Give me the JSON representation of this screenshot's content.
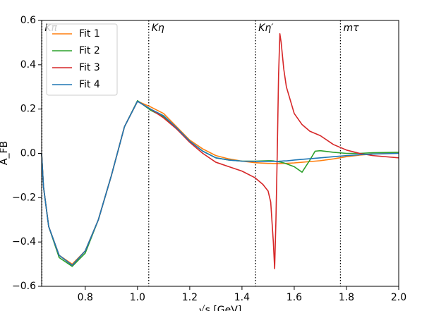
{
  "chart_data": {
    "type": "line",
    "xlabel": "√s [GeV]",
    "ylabel": "A_FB",
    "x": [
      0.633,
      0.64,
      0.66,
      0.7,
      0.75,
      0.8,
      0.85,
      0.9,
      0.95,
      1.0,
      1.05,
      1.1,
      1.15,
      1.2,
      1.25,
      1.3,
      1.35,
      1.4,
      1.45,
      1.48,
      1.5,
      1.51,
      1.52,
      1.525,
      1.53,
      1.535,
      1.54,
      1.545,
      1.55,
      1.56,
      1.57,
      1.6,
      1.63,
      1.66,
      1.68,
      1.7,
      1.75,
      1.8,
      1.85,
      1.9,
      2.0
    ],
    "series": [
      {
        "name": "Fit 1",
        "color": "#ff7f0e",
        "values": [
          0,
          -0.15,
          -0.33,
          -0.46,
          -0.5,
          -0.44,
          -0.3,
          -0.1,
          0.12,
          0.235,
          0.21,
          0.18,
          0.12,
          0.06,
          0.02,
          -0.01,
          -0.025,
          -0.035,
          -0.042,
          -0.044,
          -0.045,
          -0.045,
          -0.046,
          -0.046,
          -0.046,
          -0.046,
          -0.046,
          -0.046,
          -0.046,
          -0.045,
          -0.045,
          -0.043,
          -0.04,
          -0.037,
          -0.035,
          -0.033,
          -0.025,
          -0.015,
          -0.008,
          -0.003,
          0.002
        ]
      },
      {
        "name": "Fit 2",
        "color": "#2ca02c",
        "values": [
          0,
          -0.15,
          -0.33,
          -0.47,
          -0.51,
          -0.45,
          -0.3,
          -0.1,
          0.12,
          0.238,
          0.195,
          0.165,
          0.11,
          0.055,
          0.01,
          -0.02,
          -0.03,
          -0.035,
          -0.035,
          -0.034,
          -0.033,
          -0.033,
          -0.034,
          -0.035,
          -0.036,
          -0.037,
          -0.038,
          -0.039,
          -0.04,
          -0.043,
          -0.047,
          -0.06,
          -0.085,
          -0.03,
          0.01,
          0.012,
          0.005,
          0,
          0,
          0.003,
          0.005
        ]
      },
      {
        "name": "Fit 3",
        "color": "#d62728",
        "values": [
          0,
          -0.15,
          -0.33,
          -0.46,
          -0.505,
          -0.44,
          -0.3,
          -0.1,
          0.12,
          0.235,
          0.2,
          0.16,
          0.11,
          0.05,
          0,
          -0.04,
          -0.06,
          -0.08,
          -0.11,
          -0.14,
          -0.17,
          -0.22,
          -0.4,
          -0.52,
          -0.3,
          0,
          0.35,
          0.54,
          0.5,
          0.38,
          0.3,
          0.18,
          0.13,
          0.1,
          0.09,
          0.08,
          0.04,
          0.015,
          0,
          -0.01,
          -0.02
        ]
      },
      {
        "name": "Fit 4",
        "color": "#1f77b4",
        "values": [
          0,
          -0.15,
          -0.33,
          -0.46,
          -0.505,
          -0.44,
          -0.3,
          -0.1,
          0.12,
          0.235,
          0.2,
          0.17,
          0.115,
          0.055,
          0.01,
          -0.02,
          -0.03,
          -0.035,
          -0.036,
          -0.036,
          -0.036,
          -0.036,
          -0.036,
          -0.036,
          -0.036,
          -0.036,
          -0.036,
          -0.035,
          -0.035,
          -0.034,
          -0.034,
          -0.03,
          -0.027,
          -0.024,
          -0.022,
          -0.02,
          -0.015,
          -0.01,
          -0.006,
          -0.003,
          0
        ]
      }
    ],
    "vlines": [
      {
        "label": "Kπ",
        "x": 0.634
      },
      {
        "label": "Kη",
        "x": 1.043
      },
      {
        "label": "Kη′",
        "x": 1.452
      },
      {
        "label": "mτ",
        "x": 1.777
      }
    ],
    "xlim": [
      0.633,
      2.0
    ],
    "xticks": [
      0.8,
      {
        "value": 1,
        "label": "1.0"
      },
      1.2,
      1.4,
      1.6,
      1.8,
      {
        "value": 2,
        "label": "2.0"
      }
    ],
    "ylim": [
      -0.6,
      0.6
    ],
    "yticks": [
      {
        "value": -0.6,
        "label": "−0.6"
      },
      {
        "value": -0.4,
        "label": "−0.4"
      },
      {
        "value": -0.2,
        "label": "−0.2"
      },
      {
        "value": 0,
        "label": "0.0"
      },
      0.2,
      0.4,
      0.6
    ],
    "legend": "upper left"
  }
}
